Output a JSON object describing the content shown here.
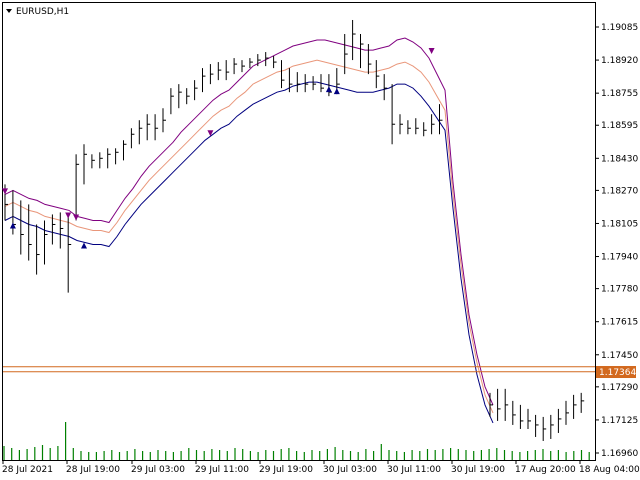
{
  "chart_data": {
    "type": "line",
    "title": "EURUSD,H1",
    "symbol": "EURUSD",
    "timeframe": "H1",
    "yaxis": {
      "ticks": [
        "1.19085",
        "1.18920",
        "1.18755",
        "1.18595",
        "1.18430",
        "1.18270",
        "1.18105",
        "1.17940",
        "1.17780",
        "1.17615",
        "1.17450",
        "1.17290",
        "1.17125",
        "1.16960"
      ],
      "range": [
        1.1696,
        1.1913
      ]
    },
    "xaxis": {
      "ticks": [
        "28 Jul 2021",
        "28 Jul 19:00",
        "29 Jul 03:00",
        "29 Jul 11:00",
        "29 Jul 19:00",
        "30 Jul 03:00",
        "30 Jul 11:00",
        "30 Jul 19:00",
        "17 Aug 20:00",
        "18 Aug 04:00"
      ]
    },
    "current_price": "1.17364",
    "horizontal_line_price": 1.17375,
    "colors": {
      "background": "#ffffff",
      "bars": "#000000",
      "upper_band": "#800080",
      "middle_band": "#e9967a",
      "lower_band": "#000080",
      "volume": "#008000",
      "price_line": "#d2691e",
      "price_badge": "#d2691e"
    },
    "series": [
      {
        "name": "Upper",
        "values": [
          1.1825,
          1.1827,
          1.1825,
          1.1823,
          1.1822,
          1.182,
          1.1819,
          1.1818,
          1.1817,
          1.1814,
          1.1813,
          1.1812,
          1.1812,
          1.1811,
          1.1817,
          1.1823,
          1.1828,
          1.1834,
          1.1839,
          1.1843,
          1.1847,
          1.1851,
          1.1856,
          1.186,
          1.1864,
          1.1868,
          1.1872,
          1.1875,
          1.1877,
          1.1881,
          1.1885,
          1.1889,
          1.1891,
          1.1893,
          1.1895,
          1.1897,
          1.1899,
          1.19,
          1.1901,
          1.1902,
          1.1902,
          1.1901,
          1.19,
          1.1899,
          1.1898,
          1.1897,
          1.1897,
          1.1898,
          1.1899,
          1.1902,
          1.1903,
          1.1901,
          1.1898,
          1.1893,
          1.1885,
          1.1877,
          1.1831,
          1.1795,
          1.1765,
          1.1745,
          1.1729,
          1.172
        ]
      },
      {
        "name": "Middle",
        "values": [
          1.1819,
          1.1821,
          1.1819,
          1.1817,
          1.1816,
          1.1814,
          1.1813,
          1.1812,
          1.1811,
          1.1809,
          1.1808,
          1.1807,
          1.1807,
          1.1806,
          1.1811,
          1.1817,
          1.1822,
          1.1827,
          1.1832,
          1.1836,
          1.184,
          1.1844,
          1.1848,
          1.1852,
          1.1856,
          1.186,
          1.1864,
          1.1867,
          1.1869,
          1.1873,
          1.1876,
          1.188,
          1.1882,
          1.1884,
          1.1886,
          1.1887,
          1.1889,
          1.189,
          1.1891,
          1.1892,
          1.1891,
          1.189,
          1.1889,
          1.1888,
          1.1887,
          1.1886,
          1.1886,
          1.1887,
          1.1888,
          1.189,
          1.1891,
          1.1889,
          1.1886,
          1.1881,
          1.1874,
          1.1867,
          1.1825,
          1.179,
          1.1761,
          1.1741,
          1.1725,
          1.1716
        ]
      },
      {
        "name": "Lower",
        "values": [
          1.1812,
          1.1814,
          1.1812,
          1.181,
          1.1809,
          1.1807,
          1.1806,
          1.1805,
          1.1804,
          1.1802,
          1.1801,
          1.18,
          1.18,
          1.1799,
          1.1804,
          1.181,
          1.1815,
          1.182,
          1.1824,
          1.1828,
          1.1832,
          1.1836,
          1.184,
          1.1844,
          1.1848,
          1.1852,
          1.1855,
          1.1858,
          1.186,
          1.1864,
          1.1867,
          1.187,
          1.1872,
          1.1874,
          1.1876,
          1.1877,
          1.1879,
          1.188,
          1.1881,
          1.1881,
          1.188,
          1.1879,
          1.1878,
          1.1877,
          1.1876,
          1.1876,
          1.1876,
          1.1877,
          1.1878,
          1.188,
          1.188,
          1.1878,
          1.1874,
          1.1869,
          1.1863,
          1.1857,
          1.1818,
          1.1783,
          1.1755,
          1.1735,
          1.172,
          1.1711
        ]
      }
    ],
    "bars": [
      [
        1.183,
        1.1812,
        1.182
      ],
      [
        1.1827,
        1.1805,
        1.181
      ],
      [
        1.1822,
        1.1795,
        1.1805
      ],
      [
        1.182,
        1.1792,
        1.18
      ],
      [
        1.181,
        1.1785,
        1.1795
      ],
      [
        1.1812,
        1.179,
        1.1805
      ],
      [
        1.1815,
        1.18,
        1.181
      ],
      [
        1.1816,
        1.1798,
        1.1808
      ],
      [
        1.1815,
        1.1776,
        1.18
      ],
      [
        1.1845,
        1.1812,
        1.184
      ],
      [
        1.185,
        1.183,
        1.1845
      ],
      [
        1.1845,
        1.1838,
        1.1842
      ],
      [
        1.1846,
        1.1838,
        1.1843
      ],
      [
        1.1848,
        1.1838,
        1.1845
      ],
      [
        1.1848,
        1.184,
        1.1846
      ],
      [
        1.1852,
        1.1842,
        1.185
      ],
      [
        1.1858,
        1.1848,
        1.1855
      ],
      [
        1.1862,
        1.185,
        1.1858
      ],
      [
        1.1865,
        1.1852,
        1.186
      ],
      [
        1.1865,
        1.1852,
        1.1858
      ],
      [
        1.1868,
        1.1856,
        1.1862
      ],
      [
        1.1878,
        1.1865,
        1.1874
      ],
      [
        1.188,
        1.1868,
        1.1876
      ],
      [
        1.1878,
        1.187,
        1.1874
      ],
      [
        1.1882,
        1.1872,
        1.1878
      ],
      [
        1.1888,
        1.1876,
        1.1884
      ],
      [
        1.189,
        1.188,
        1.1885
      ],
      [
        1.1891,
        1.1882,
        1.1887
      ],
      [
        1.1892,
        1.1882,
        1.1886
      ],
      [
        1.1893,
        1.1885,
        1.189
      ],
      [
        1.1892,
        1.1886,
        1.1889
      ],
      [
        1.1893,
        1.1888,
        1.1891
      ],
      [
        1.1895,
        1.1889,
        1.1892
      ],
      [
        1.1896,
        1.1889,
        1.1893
      ],
      [
        1.1894,
        1.1888,
        1.1891
      ],
      [
        1.1892,
        1.1878,
        1.1882
      ],
      [
        1.1888,
        1.1876,
        1.188
      ],
      [
        1.1886,
        1.1876,
        1.188
      ],
      [
        1.1885,
        1.1876,
        1.188
      ],
      [
        1.1884,
        1.1877,
        1.188
      ],
      [
        1.1885,
        1.1876,
        1.1878
      ],
      [
        1.1885,
        1.1874,
        1.1876
      ],
      [
        1.1888,
        1.1875,
        1.188
      ],
      [
        1.1905,
        1.1885,
        1.1895
      ],
      [
        1.1912,
        1.1892,
        1.1905
      ],
      [
        1.1905,
        1.1888,
        1.19
      ],
      [
        1.19,
        1.1885,
        1.189
      ],
      [
        1.1892,
        1.1878,
        1.1884
      ],
      [
        1.1885,
        1.1872,
        1.1878
      ],
      [
        1.188,
        1.185,
        1.186
      ],
      [
        1.1865,
        1.1855,
        1.186
      ],
      [
        1.1862,
        1.1855,
        1.1858
      ],
      [
        1.1863,
        1.1855,
        1.1858
      ],
      [
        1.1861,
        1.1854,
        1.1857
      ],
      [
        1.1865,
        1.1855,
        1.186
      ],
      [
        1.187,
        1.1855,
        1.1862
      ],
      [
        1.1726,
        1.1714,
        1.172
      ],
      [
        1.1728,
        1.1712,
        1.1718
      ],
      [
        1.1728,
        1.1712,
        1.172
      ],
      [
        1.1722,
        1.171,
        1.1715
      ],
      [
        1.172,
        1.1708,
        1.1712
      ],
      [
        1.1718,
        1.1708,
        1.1712
      ],
      [
        1.1715,
        1.1704,
        1.171
      ],
      [
        1.1714,
        1.1702,
        1.1708
      ],
      [
        1.1715,
        1.1703,
        1.171
      ],
      [
        1.1718,
        1.1706,
        1.1713
      ],
      [
        1.1722,
        1.171,
        1.1716
      ],
      [
        1.1725,
        1.1713,
        1.172
      ],
      [
        1.1726,
        1.1716,
        1.1722
      ]
    ],
    "volumes": [
      14,
      12,
      10,
      11,
      13,
      15,
      12,
      14,
      38,
      12,
      9,
      8,
      8,
      9,
      10,
      8,
      9,
      11,
      9,
      8,
      10,
      9,
      8,
      9,
      12,
      10,
      9,
      11,
      10,
      9,
      12,
      11,
      9,
      8,
      10,
      9,
      11,
      12,
      9,
      8,
      10,
      9,
      11,
      13,
      10,
      9,
      8,
      11,
      9,
      16,
      10,
      9,
      8,
      10,
      9,
      11,
      10,
      11,
      12,
      11,
      10,
      9,
      10,
      11,
      12,
      10,
      9,
      8,
      9,
      10,
      11,
      9,
      10,
      8,
      9,
      10,
      8
    ],
    "arrows": [
      {
        "bar": 0,
        "dir": "down",
        "price": 1.1826
      },
      {
        "bar": 1,
        "dir": "up",
        "price": 1.181
      },
      {
        "bar": 8,
        "dir": "down",
        "price": 1.1814
      },
      {
        "bar": 9,
        "dir": "down",
        "price": 1.1813
      },
      {
        "bar": 10,
        "dir": "up",
        "price": 1.18
      },
      {
        "bar": 26,
        "dir": "down",
        "price": 1.1855
      },
      {
        "bar": 41,
        "dir": "up",
        "price": 1.1878
      },
      {
        "bar": 42,
        "dir": "up",
        "price": 1.1877
      },
      {
        "bar": 54,
        "dir": "down",
        "price": 1.1896
      }
    ]
  }
}
